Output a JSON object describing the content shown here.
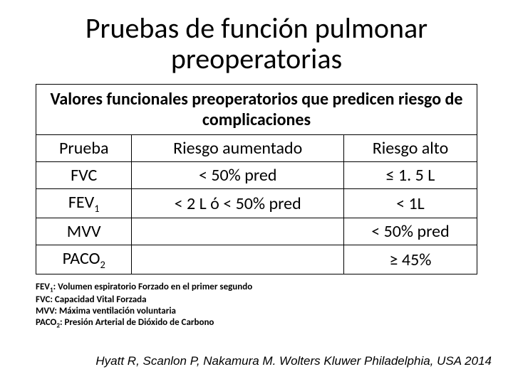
{
  "title": "Pruebas de función pulmonar preoperatorias",
  "table": {
    "header_span": "Valores funcionales preoperatorios que predicen riesgo de complicaciones",
    "columns": [
      "Prueba",
      "Riesgo aumentado",
      "Riesgo alto"
    ],
    "rows": [
      {
        "test": "FVC",
        "aumentado": "< 50% pred",
        "alto": "≤ 1. 5 L"
      },
      {
        "test": "FEV1_SUB",
        "aumentado": "< 2 L ó < 50% pred",
        "alto": "< 1L"
      },
      {
        "test": "MVV",
        "aumentado": "",
        "alto": "< 50% pred"
      },
      {
        "test": "PACO2_SUB",
        "aumentado": "",
        "alto": "≥ 45%"
      }
    ]
  },
  "legend": {
    "l1a": "FEV",
    "l1b": ": Volumen espiratorio Forzado en el primer segundo",
    "l2": "FVC: Capacidad Vital Forzada",
    "l3": "MVV: Máxima ventilación voluntaria",
    "l4a": "PACO",
    "l4b": ": Presión Arterial de Dióxido de Carbono"
  },
  "citation": "Hyatt R, Scanlon P, Nakamura M. Wolters Kluwer Philadelphia, USA 2014",
  "colors": {
    "border": "#000000",
    "text": "#000000",
    "background": "#ffffff"
  }
}
